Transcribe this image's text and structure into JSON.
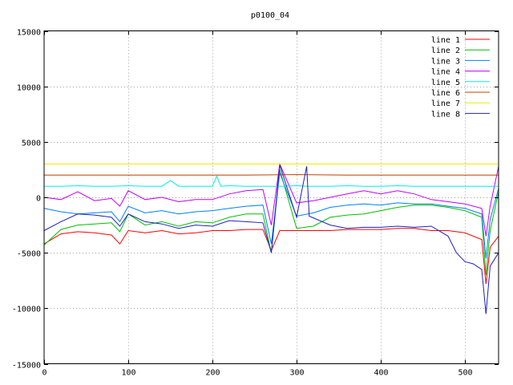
{
  "chart_data": {
    "type": "line",
    "title": "p0100_04",
    "xlabel": "",
    "ylabel": "",
    "xlim": [
      0,
      540
    ],
    "ylim": [
      -15000,
      15000
    ],
    "xticks": [
      0,
      100,
      200,
      300,
      400,
      500
    ],
    "yticks": [
      -15000,
      -10000,
      -5000,
      0,
      5000,
      10000,
      15000
    ],
    "grid": true,
    "legend_position": "top-right",
    "colors": {
      "line 1": "#ff0000",
      "line 2": "#00c000",
      "line 3": "#0080ff",
      "line 4": "#c000ff",
      "line 5": "#00eeee",
      "line 6": "#c04000",
      "line 7": "#eeee00",
      "line 8": "#2020c0"
    },
    "series": [
      {
        "name": "line 1",
        "x": [
          0,
          20,
          40,
          60,
          80,
          90,
          100,
          120,
          140,
          160,
          180,
          200,
          220,
          240,
          260,
          270,
          280,
          300,
          320,
          340,
          360,
          380,
          400,
          420,
          440,
          460,
          480,
          500,
          520,
          525,
          530,
          540
        ],
        "values": [
          -4200,
          -3300,
          -3100,
          -3200,
          -3400,
          -4200,
          -3000,
          -3200,
          -3000,
          -3300,
          -3200,
          -3000,
          -3000,
          -2900,
          -2900,
          -4800,
          -3000,
          -3000,
          -3000,
          -3000,
          -2900,
          -2900,
          -2900,
          -2800,
          -2800,
          -3000,
          -3000,
          -3200,
          -3800,
          -7800,
          -4500,
          -3500
        ]
      },
      {
        "name": "line 2",
        "x": [
          0,
          20,
          40,
          60,
          80,
          90,
          100,
          120,
          140,
          160,
          180,
          200,
          220,
          240,
          260,
          270,
          280,
          300,
          320,
          340,
          360,
          380,
          400,
          420,
          440,
          460,
          480,
          500,
          520,
          525,
          530,
          540
        ],
        "values": [
          -4300,
          -2900,
          -2500,
          -2400,
          -2300,
          -3100,
          -1500,
          -2500,
          -2200,
          -2600,
          -2200,
          -2300,
          -1800,
          -1500,
          -1500,
          -5000,
          2500,
          -2800,
          -2600,
          -1800,
          -1600,
          -1500,
          -1200,
          -900,
          -700,
          -700,
          -900,
          -1200,
          -1800,
          -7000,
          -3000,
          500
        ]
      },
      {
        "name": "line 3",
        "x": [
          0,
          20,
          40,
          60,
          80,
          90,
          100,
          120,
          140,
          160,
          180,
          200,
          220,
          240,
          260,
          270,
          280,
          300,
          320,
          340,
          360,
          380,
          400,
          420,
          440,
          460,
          480,
          500,
          520,
          525,
          530,
          540
        ],
        "values": [
          -1000,
          -1300,
          -1500,
          -1400,
          -1300,
          -2200,
          -800,
          -1400,
          -1200,
          -1500,
          -1300,
          -1200,
          -1000,
          -800,
          -700,
          -4200,
          2200,
          -1700,
          -1400,
          -900,
          -700,
          -600,
          -700,
          -500,
          -600,
          -600,
          -800,
          -1000,
          -1500,
          -5500,
          -2000,
          800
        ]
      },
      {
        "name": "line 4",
        "x": [
          0,
          20,
          40,
          60,
          80,
          90,
          100,
          120,
          140,
          160,
          180,
          200,
          220,
          240,
          260,
          270,
          280,
          300,
          320,
          340,
          360,
          380,
          400,
          420,
          440,
          460,
          480,
          500,
          520,
          525,
          530,
          540
        ],
        "values": [
          0,
          -200,
          500,
          -300,
          -100,
          -800,
          600,
          -200,
          0,
          -400,
          -200,
          -200,
          300,
          600,
          700,
          -2500,
          3000,
          -500,
          -300,
          0,
          300,
          600,
          300,
          600,
          300,
          -200,
          -400,
          -600,
          -1000,
          -3500,
          -800,
          2800
        ]
      },
      {
        "name": "line 5",
        "x": [
          0,
          20,
          40,
          60,
          80,
          100,
          120,
          140,
          150,
          160,
          180,
          200,
          205,
          210,
          220,
          240,
          260,
          280,
          300,
          312,
          315,
          340,
          360,
          380,
          400,
          420,
          440,
          460,
          480,
          500,
          520,
          540
        ],
        "values": [
          1000,
          1000,
          1050,
          1000,
          1000,
          1050,
          1000,
          1000,
          1500,
          1000,
          1000,
          1000,
          1900,
          1000,
          1050,
          1000,
          1000,
          1000,
          1050,
          1000,
          1000,
          1000,
          1050,
          1000,
          1000,
          1050,
          1000,
          1000,
          1000,
          1000,
          1000,
          1000
        ]
      },
      {
        "name": "line 6",
        "x": [
          0,
          60,
          120,
          180,
          240,
          300,
          360,
          420,
          480,
          540
        ],
        "values": [
          2000,
          2000,
          2000,
          2000,
          2000,
          2050,
          2000,
          2000,
          2000,
          2000
        ]
      },
      {
        "name": "line 7",
        "x": [
          0,
          60,
          120,
          180,
          240,
          300,
          360,
          420,
          480,
          540
        ],
        "values": [
          3000,
          3000,
          3000,
          3000,
          3000,
          3000,
          3000,
          3000,
          3000,
          3000
        ]
      },
      {
        "name": "line 8",
        "x": [
          0,
          20,
          40,
          60,
          80,
          90,
          100,
          120,
          140,
          160,
          180,
          200,
          220,
          240,
          260,
          270,
          280,
          300,
          312,
          315,
          340,
          360,
          380,
          400,
          420,
          440,
          460,
          480,
          490,
          500,
          510,
          520,
          525,
          530,
          540
        ],
        "values": [
          -3000,
          -2200,
          -1500,
          -1600,
          -1800,
          -2600,
          -1500,
          -2200,
          -2400,
          -2800,
          -2500,
          -2600,
          -2100,
          -2200,
          -2300,
          -5000,
          2900,
          -1800,
          2800,
          -1700,
          -2500,
          -2800,
          -2700,
          -2700,
          -2600,
          -2700,
          -2600,
          -3500,
          -5000,
          -5800,
          -6000,
          -6500,
          -10500,
          -6200,
          -5000
        ]
      }
    ]
  }
}
